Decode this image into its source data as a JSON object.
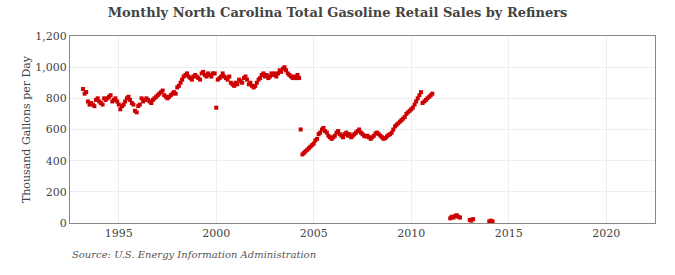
{
  "chart_data": {
    "type": "scatter",
    "title": "Monthly North Carolina Total Gasoline Retail Sales by Refiners",
    "ylabel": "Thousand Gallons per Day",
    "source": "Source: U.S. Energy Information Administration",
    "color": "#cc0000",
    "marker": "square",
    "grid": true,
    "xlim": [
      1992.5,
      2022.5
    ],
    "xticks": [
      1995,
      2000,
      2005,
      2010,
      2015,
      2020
    ],
    "ylim": [
      0,
      1200
    ],
    "yticks": [
      0,
      200,
      400,
      600,
      800,
      {
        "value": 1000,
        "label": "1,000"
      },
      {
        "value": 1200,
        "label": "1,200"
      }
    ],
    "x": [
      1993.17,
      1993.25,
      1993.33,
      1993.42,
      1993.5,
      1993.58,
      1993.67,
      1993.75,
      1993.83,
      1993.92,
      1994.0,
      1994.08,
      1994.17,
      1994.25,
      1994.33,
      1994.42,
      1994.5,
      1994.58,
      1994.67,
      1994.75,
      1994.83,
      1994.92,
      1995.0,
      1995.08,
      1995.17,
      1995.25,
      1995.33,
      1995.42,
      1995.5,
      1995.58,
      1995.67,
      1995.75,
      1995.83,
      1995.92,
      1996.0,
      1996.08,
      1996.17,
      1996.25,
      1996.33,
      1996.42,
      1996.5,
      1996.58,
      1996.67,
      1996.75,
      1996.83,
      1996.92,
      1997.0,
      1997.08,
      1997.17,
      1997.25,
      1997.33,
      1997.42,
      1997.5,
      1997.58,
      1997.67,
      1997.75,
      1997.83,
      1997.92,
      1998.0,
      1998.08,
      1998.17,
      1998.25,
      1998.33,
      1998.42,
      1998.5,
      1998.58,
      1998.67,
      1998.75,
      1998.83,
      1998.92,
      1999.0,
      1999.08,
      1999.17,
      1999.25,
      1999.33,
      1999.42,
      1999.5,
      1999.58,
      1999.67,
      1999.75,
      1999.83,
      1999.92,
      2000.0,
      2000.08,
      2000.17,
      2000.25,
      2000.33,
      2000.42,
      2000.5,
      2000.58,
      2000.67,
      2000.75,
      2000.83,
      2000.92,
      2001.0,
      2001.08,
      2001.17,
      2001.25,
      2001.33,
      2001.42,
      2001.5,
      2001.58,
      2001.67,
      2001.75,
      2001.83,
      2001.92,
      2002.0,
      2002.08,
      2002.17,
      2002.25,
      2002.33,
      2002.42,
      2002.5,
      2002.58,
      2002.67,
      2002.75,
      2002.83,
      2002.92,
      2003.0,
      2003.08,
      2003.17,
      2003.25,
      2003.33,
      2003.42,
      2003.5,
      2003.58,
      2003.67,
      2003.75,
      2003.83,
      2003.92,
      2004.0,
      2004.08,
      2004.17,
      2004.25,
      2004.33,
      2004.42,
      2004.5,
      2004.58,
      2004.67,
      2004.75,
      2004.83,
      2004.92,
      2005.0,
      2005.08,
      2005.17,
      2005.25,
      2005.33,
      2005.42,
      2005.5,
      2005.58,
      2005.67,
      2005.75,
      2005.83,
      2005.92,
      2006.0,
      2006.08,
      2006.17,
      2006.25,
      2006.33,
      2006.42,
      2006.5,
      2006.58,
      2006.67,
      2006.75,
      2006.83,
      2006.92,
      2007.0,
      2007.08,
      2007.17,
      2007.25,
      2007.33,
      2007.42,
      2007.5,
      2007.58,
      2007.67,
      2007.75,
      2007.83,
      2007.92,
      2008.0,
      2008.08,
      2008.17,
      2008.25,
      2008.33,
      2008.42,
      2008.5,
      2008.58,
      2008.67,
      2008.75,
      2008.83,
      2008.92,
      2009.0,
      2009.08,
      2009.17,
      2009.25,
      2009.33,
      2009.42,
      2009.5,
      2009.58,
      2009.67,
      2009.75,
      2009.83,
      2009.92,
      2010.0,
      2010.08,
      2010.17,
      2010.25,
      2010.33,
      2010.42,
      2010.5,
      2010.58,
      2010.67,
      2010.75,
      2010.83,
      2010.92,
      2011.0,
      2011.08,
      2012.0,
      2012.08,
      2012.17,
      2012.25,
      2012.33,
      2012.42,
      2012.5,
      2013.0,
      2013.08,
      2013.17,
      2014.0,
      2014.08,
      2014.17
    ],
    "values": [
      860,
      830,
      840,
      780,
      760,
      770,
      760,
      750,
      790,
      800,
      780,
      770,
      760,
      800,
      790,
      800,
      810,
      820,
      780,
      790,
      800,
      780,
      760,
      730,
      750,
      760,
      780,
      800,
      810,
      790,
      770,
      760,
      720,
      710,
      750,
      760,
      800,
      780,
      790,
      800,
      790,
      780,
      770,
      790,
      800,
      810,
      820,
      830,
      840,
      850,
      820,
      810,
      800,
      810,
      820,
      830,
      840,
      830,
      870,
      880,
      900,
      920,
      940,
      950,
      960,
      940,
      930,
      920,
      940,
      950,
      940,
      930,
      920,
      960,
      970,
      950,
      940,
      960,
      950,
      940,
      960,
      960,
      740,
      920,
      930,
      940,
      960,
      940,
      930,
      920,
      940,
      900,
      890,
      880,
      900,
      890,
      920,
      910,
      900,
      930,
      940,
      920,
      890,
      900,
      880,
      870,
      880,
      900,
      920,
      930,
      950,
      960,
      940,
      950,
      930,
      940,
      960,
      950,
      960,
      940,
      960,
      980,
      970,
      990,
      1000,
      980,
      960,
      950,
      940,
      930,
      940,
      930,
      950,
      930,
      600,
      440,
      450,
      460,
      470,
      480,
      490,
      500,
      510,
      530,
      540,
      570,
      580,
      600,
      610,
      590,
      580,
      560,
      550,
      540,
      550,
      560,
      580,
      590,
      570,
      560,
      550,
      570,
      580,
      560,
      570,
      550,
      560,
      570,
      580,
      590,
      600,
      580,
      570,
      560,
      555,
      560,
      550,
      540,
      550,
      560,
      575,
      580,
      570,
      560,
      550,
      540,
      545,
      555,
      565,
      570,
      580,
      600,
      620,
      630,
      640,
      650,
      660,
      670,
      680,
      700,
      710,
      720,
      730,
      740,
      760,
      780,
      800,
      820,
      840,
      770,
      780,
      790,
      800,
      810,
      820,
      830,
      30,
      40,
      35,
      45,
      50,
      40,
      35,
      20,
      15,
      25,
      10,
      15,
      10
    ]
  }
}
